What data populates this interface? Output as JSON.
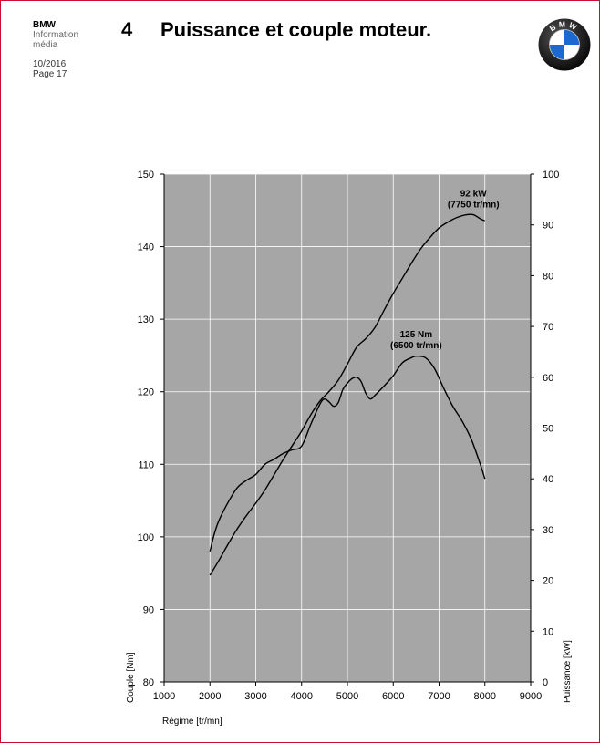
{
  "header": {
    "brand": "BMW",
    "line2": "Information",
    "line3": "média",
    "date": "10/2016",
    "page": "Page 17",
    "chapter": "4",
    "title": "Puissance et couple moteur."
  },
  "logo": {
    "icon": "bmw-roundel-icon",
    "letters": "BMW",
    "colors": {
      "blue": "#1c69d4",
      "ring": "#111111",
      "white": "#ffffff"
    }
  },
  "chart_data": {
    "type": "line",
    "xlabel": "Régime [tr/mn]",
    "ylabel": "Couple [Nm]",
    "y2label": "Puissance [kW]",
    "xlim": [
      1000,
      9000
    ],
    "xticks": [
      1000,
      2000,
      3000,
      4000,
      5000,
      6000,
      7000,
      8000,
      9000
    ],
    "ylim": [
      80,
      150
    ],
    "yticks": [
      80,
      90,
      100,
      110,
      120,
      130,
      140,
      150
    ],
    "y2lim": [
      0,
      100
    ],
    "y2ticks": [
      0,
      10,
      20,
      30,
      40,
      50,
      60,
      70,
      80,
      90,
      100
    ],
    "grid": true,
    "plot_background": "#a6a6a6",
    "line_color": "#000000",
    "series": [
      {
        "key": "torque",
        "axis": "left",
        "x": [
          2000,
          2100,
          2200,
          2400,
          2600,
          2800,
          3000,
          3200,
          3400,
          3600,
          3800,
          4000,
          4200,
          4400,
          4500,
          4600,
          4700,
          4800,
          4900,
          5000,
          5100,
          5200,
          5300,
          5400,
          5500,
          5600,
          5800,
          6000,
          6200,
          6400,
          6500,
          6700,
          6900,
          7100,
          7300,
          7500,
          7700,
          7900,
          8000
        ],
        "y": [
          98,
          100.5,
          102.3,
          104.8,
          106.8,
          107.8,
          108.6,
          110.0,
          110.7,
          111.5,
          112.0,
          112.5,
          115.5,
          118.3,
          119.0,
          118.6,
          118.0,
          118.5,
          120.3,
          121.2,
          121.8,
          122.0,
          121.4,
          119.8,
          119.0,
          119.5,
          120.8,
          122.2,
          124.0,
          124.7,
          124.9,
          124.7,
          123.2,
          120.5,
          118.0,
          116.0,
          113.5,
          110.0,
          108.0
        ]
      },
      {
        "key": "power",
        "axis": "right",
        "x": [
          2000,
          2200,
          2400,
          2600,
          2800,
          3000,
          3200,
          3400,
          3600,
          3800,
          4000,
          4200,
          4400,
          4600,
          4800,
          5000,
          5200,
          5400,
          5600,
          5800,
          6000,
          6200,
          6400,
          6600,
          6800,
          7000,
          7200,
          7400,
          7600,
          7750,
          7900,
          8000
        ],
        "y": [
          21.0,
          24.0,
          27.2,
          30.2,
          32.8,
          35.2,
          37.8,
          40.8,
          43.8,
          46.6,
          49.4,
          52.6,
          55.3,
          57.2,
          59.4,
          62.6,
          65.9,
          67.6,
          69.8,
          73.2,
          76.5,
          79.5,
          82.5,
          85.3,
          87.5,
          89.4,
          90.6,
          91.5,
          92.0,
          92.0,
          91.2,
          90.8
        ]
      }
    ],
    "annotations": [
      {
        "line1": "92 kW",
        "line2": "(7750 tr/mn)",
        "x": 7750,
        "y": 92,
        "axis": "right"
      },
      {
        "line1": "125 Nm",
        "line2": "(6500 tr/mn)",
        "x": 6500,
        "y": 125,
        "axis": "left"
      }
    ]
  }
}
